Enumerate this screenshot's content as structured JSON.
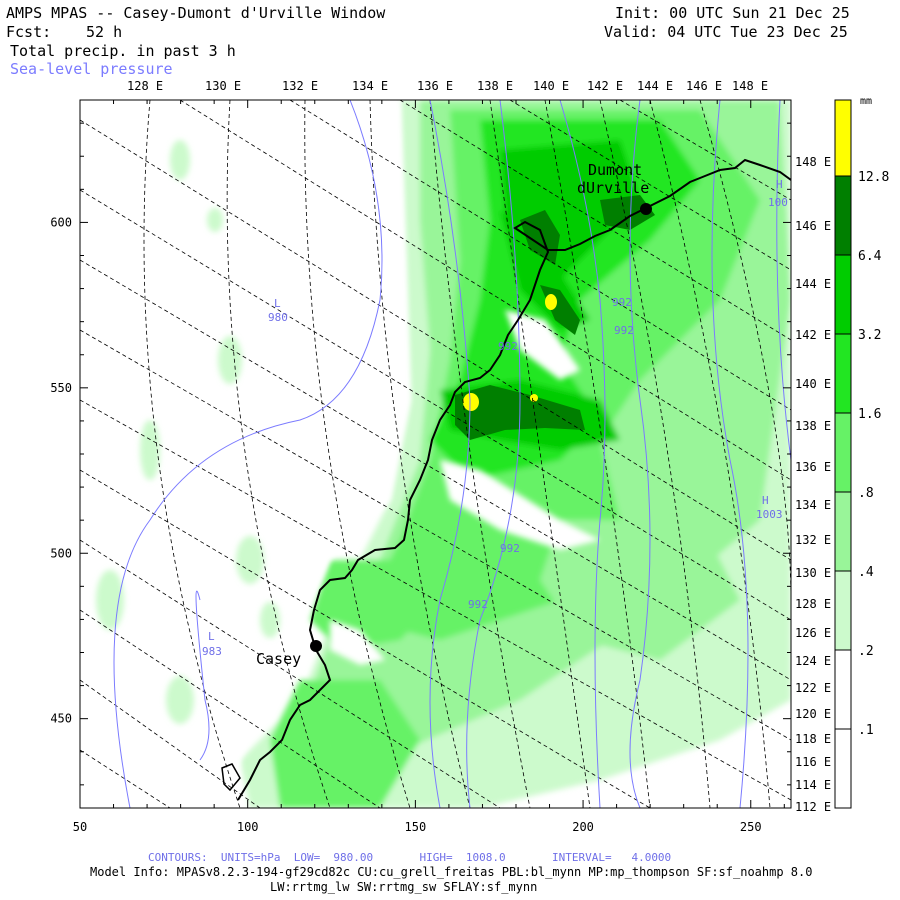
{
  "header": {
    "title": "AMPS MPAS -- Casey-Dumont d'Urville Window",
    "fcst_label": "Fcst:",
    "fcst_value": "52 h",
    "field_label": "Total precip. in past 3 h",
    "overlay_label": "Sea-level pressure",
    "init_text": "Init: 00 UTC Sun 21 Dec 25",
    "valid_text": "Valid: 04 UTC Tue 23 Dec 25"
  },
  "top_longitude_labels": [
    "128 E",
    "130 E",
    "132 E",
    "134 E",
    "136 E",
    "138 E",
    "140 E",
    "142 E",
    "144 E",
    "146 E",
    "148 E"
  ],
  "right_longitude_labels": [
    "148 E",
    "146 E",
    "144 E",
    "142 E",
    "140 E",
    "138 E",
    "136 E",
    "134 E",
    "132 E",
    "130 E",
    "128 E",
    "126 E",
    "124 E",
    "122 E",
    "120 E",
    "118 E",
    "116 E",
    "114 E",
    "112 E"
  ],
  "x_axis": {
    "ticks": [
      "50",
      "100",
      "150",
      "200",
      "250"
    ],
    "range": [
      50,
      262
    ]
  },
  "y_axis": {
    "ticks": [
      "450",
      "500",
      "550",
      "600"
    ],
    "range": [
      423,
      637
    ]
  },
  "stations": [
    {
      "name_line1": "Casey",
      "name_line2": ""
    },
    {
      "name_line1": "Dumont",
      "name_line2": "dUrville"
    }
  ],
  "pressure_labels": [
    {
      "letter": "L",
      "value": "980"
    },
    {
      "letter": "L",
      "value": "983"
    },
    {
      "letter": "H",
      "value": "1003"
    },
    {
      "letter": "",
      "value": "992"
    },
    {
      "letter": "",
      "value": "992"
    },
    {
      "letter": "",
      "value": "992"
    },
    {
      "letter": "",
      "value": "992"
    },
    {
      "letter": "",
      "value": "992"
    },
    {
      "letter": "H",
      "value": "100"
    }
  ],
  "colorbar": {
    "unit": "mm",
    "labels": [
      "12.8",
      "6.4",
      "3.2",
      "1.6",
      ".8",
      ".4",
      ".2",
      ".1"
    ],
    "colors": {
      "above_12.8": "#ffff00",
      "6.4_12.8": "#007f00",
      "3.2_6.4": "#00cc00",
      "1.6_3.2": "#22e622",
      "0.8_1.6": "#66f266",
      "0.4_0.8": "#99f599",
      "0.2_0.4": "#ccfacc",
      "0.1_0.2": "#ffffff"
    }
  },
  "footer": {
    "contours": "CONTOURS:  UNITS=hPa  LOW=  980.00       HIGH=  1008.0       INTERVAL=   4.0000",
    "model_info": "Model Info: MPASv8.2.3-194-gf29cd82c CU:cu_grell_freitas PBL:bl_mynn MP:mp_thompson SF:sf_noahmp 8.0",
    "model_info2": "LW:rrtmg_lw SW:rrtmg_sw SFLAY:sf_mynn"
  }
}
